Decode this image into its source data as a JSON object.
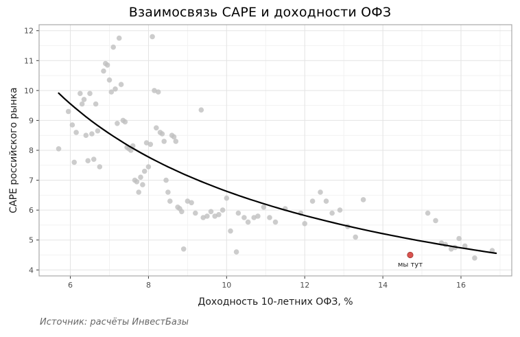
{
  "page": {
    "title": "Взаимосвязь CAPE и доходности ОФЗ",
    "caption": "Источник: расчёты ИнвестБазы"
  },
  "chart_data": {
    "type": "scatter",
    "title": "Взаимосвязь CAPE и доходности ОФЗ",
    "xlabel": "Доходность 10-летних ОФЗ, %",
    "ylabel": "CAPE российского рынка",
    "caption": "Источник: расчёты ИнвестБазы",
    "xlim": [
      5.2,
      17.3
    ],
    "ylim": [
      3.8,
      12.2
    ],
    "x_ticks": [
      6,
      8,
      10,
      12,
      14,
      16
    ],
    "y_ticks": [
      4,
      5,
      6,
      7,
      8,
      9,
      10,
      11,
      12
    ],
    "x_minor": [
      5,
      7,
      9,
      11,
      13,
      15,
      17
    ],
    "y_minor": [
      4.5,
      5.5,
      6.5,
      7.5,
      8.5,
      9.5,
      10.5,
      11.5
    ],
    "grid": true,
    "legend": "none",
    "panel_bg": "#ffffff",
    "border_color": "#a8a8a8",
    "grid_major_color": "#e3e3e3",
    "grid_minor_color": "#f2f2f2",
    "tick_color": "#333333",
    "tick_label_color": "#4d4d4d",
    "point_color": "#bfbfbf",
    "points": [
      [
        5.7,
        8.05
      ],
      [
        5.95,
        9.3
      ],
      [
        6.05,
        8.85
      ],
      [
        6.1,
        7.6
      ],
      [
        6.15,
        8.6
      ],
      [
        6.25,
        9.9
      ],
      [
        6.3,
        9.55
      ],
      [
        6.35,
        9.7
      ],
      [
        6.4,
        8.5
      ],
      [
        6.45,
        7.65
      ],
      [
        6.5,
        9.9
      ],
      [
        6.55,
        8.55
      ],
      [
        6.6,
        7.7
      ],
      [
        6.65,
        9.55
      ],
      [
        6.7,
        8.65
      ],
      [
        6.75,
        7.45
      ],
      [
        6.85,
        10.65
      ],
      [
        6.9,
        10.9
      ],
      [
        6.95,
        10.85
      ],
      [
        7.0,
        10.35
      ],
      [
        7.05,
        9.95
      ],
      [
        7.1,
        11.45
      ],
      [
        7.15,
        10.05
      ],
      [
        7.2,
        8.9
      ],
      [
        7.25,
        11.75
      ],
      [
        7.3,
        10.2
      ],
      [
        7.35,
        9.0
      ],
      [
        7.4,
        8.95
      ],
      [
        7.45,
        8.1
      ],
      [
        7.5,
        8.05
      ],
      [
        7.55,
        8.0
      ],
      [
        7.6,
        8.15
      ],
      [
        7.65,
        7.0
      ],
      [
        7.7,
        6.95
      ],
      [
        7.75,
        6.6
      ],
      [
        7.8,
        7.1
      ],
      [
        7.85,
        6.85
      ],
      [
        7.9,
        7.3
      ],
      [
        7.95,
        8.25
      ],
      [
        8.0,
        7.45
      ],
      [
        8.05,
        8.2
      ],
      [
        8.1,
        11.8
      ],
      [
        8.15,
        10.0
      ],
      [
        8.2,
        8.75
      ],
      [
        8.25,
        9.95
      ],
      [
        8.3,
        8.6
      ],
      [
        8.35,
        8.55
      ],
      [
        8.4,
        8.3
      ],
      [
        8.45,
        7.0
      ],
      [
        8.5,
        6.6
      ],
      [
        8.55,
        6.3
      ],
      [
        8.6,
        8.5
      ],
      [
        8.65,
        8.45
      ],
      [
        8.7,
        8.3
      ],
      [
        8.75,
        6.1
      ],
      [
        8.8,
        6.05
      ],
      [
        8.85,
        5.95
      ],
      [
        8.9,
        4.7
      ],
      [
        9.0,
        6.3
      ],
      [
        9.1,
        6.25
      ],
      [
        9.2,
        5.9
      ],
      [
        9.35,
        9.35
      ],
      [
        9.4,
        5.75
      ],
      [
        9.5,
        5.8
      ],
      [
        9.6,
        5.95
      ],
      [
        9.7,
        5.8
      ],
      [
        9.8,
        5.85
      ],
      [
        9.9,
        6.0
      ],
      [
        10.0,
        6.4
      ],
      [
        10.1,
        5.3
      ],
      [
        10.25,
        4.6
      ],
      [
        10.3,
        5.9
      ],
      [
        10.45,
        5.75
      ],
      [
        10.55,
        5.6
      ],
      [
        10.7,
        5.75
      ],
      [
        10.8,
        5.8
      ],
      [
        10.95,
        6.1
      ],
      [
        11.1,
        5.75
      ],
      [
        11.25,
        5.6
      ],
      [
        11.5,
        6.05
      ],
      [
        11.9,
        5.9
      ],
      [
        12.0,
        5.55
      ],
      [
        12.2,
        6.3
      ],
      [
        12.4,
        6.6
      ],
      [
        12.55,
        6.3
      ],
      [
        12.7,
        5.9
      ],
      [
        12.9,
        6.0
      ],
      [
        13.1,
        5.45
      ],
      [
        13.3,
        5.1
      ],
      [
        13.5,
        6.35
      ],
      [
        15.15,
        5.9
      ],
      [
        15.35,
        5.65
      ],
      [
        15.5,
        4.9
      ],
      [
        15.6,
        4.85
      ],
      [
        15.75,
        4.7
      ],
      [
        15.85,
        4.75
      ],
      [
        15.95,
        5.05
      ],
      [
        16.1,
        4.8
      ],
      [
        16.35,
        4.4
      ],
      [
        16.8,
        4.65
      ]
    ],
    "highlight_point": {
      "x": 14.7,
      "y": 4.5,
      "label": "мы тут",
      "color": "#d9534f",
      "stroke": "#a03a34"
    },
    "trendline": {
      "type": "power",
      "a": 34.4,
      "b": -0.715,
      "x_start": 5.7,
      "x_end": 16.9,
      "color": "#000000"
    }
  }
}
